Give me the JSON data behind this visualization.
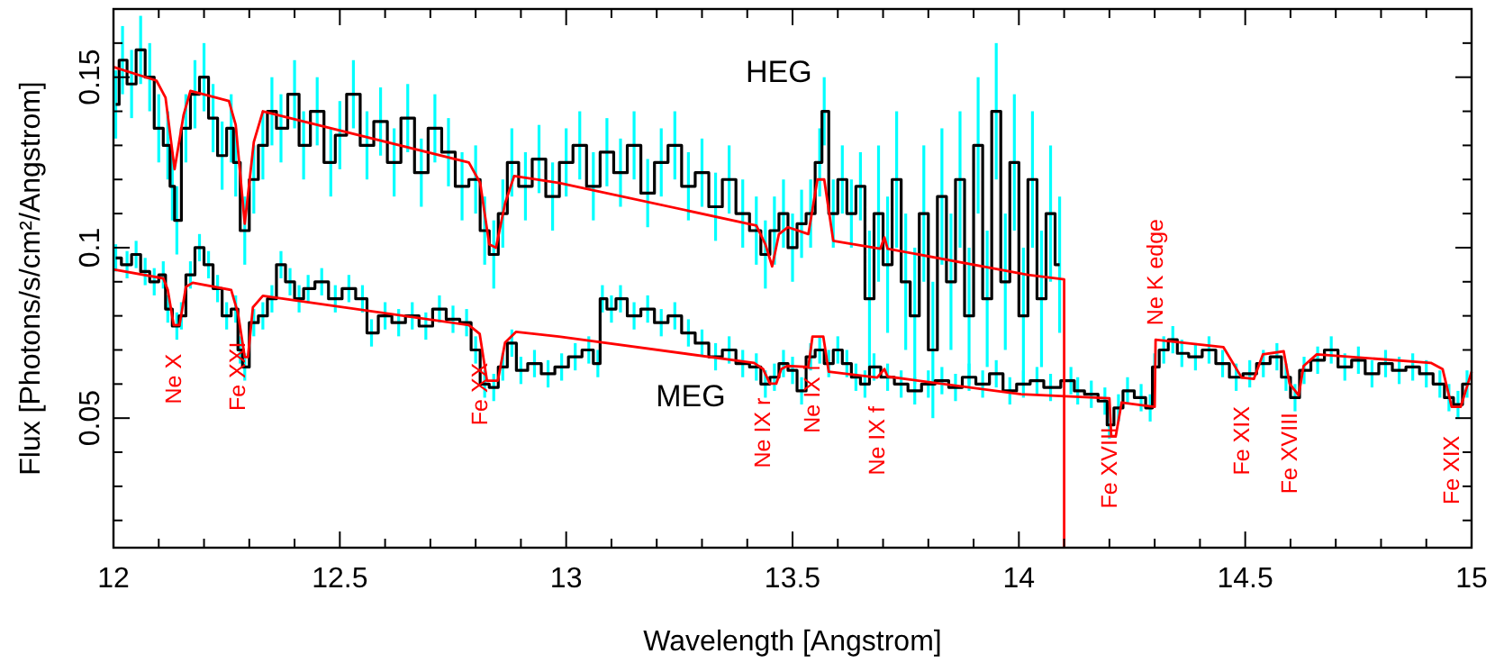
{
  "chart_data": {
    "type": "step",
    "xlabel": "Wavelength [Angstrom]",
    "ylabel": "Flux [Photons/s/cm²/Angstrom]",
    "xlim": [
      12,
      15
    ],
    "ylim": [
      0.012,
      0.17
    ],
    "xticks": [
      12,
      {
        "value": 12.1,
        "label": null
      },
      {
        "value": 12.2,
        "label": null
      },
      {
        "value": 12.3,
        "label": null
      },
      {
        "value": 12.4,
        "label": null
      },
      12.5,
      {
        "value": 12.6,
        "label": null
      },
      {
        "value": 12.7,
        "label": null
      },
      {
        "value": 12.8,
        "label": null
      },
      {
        "value": 12.9,
        "label": null
      },
      13,
      {
        "value": 13.1,
        "label": null
      },
      {
        "value": 13.2,
        "label": null
      },
      {
        "value": 13.3,
        "label": null
      },
      {
        "value": 13.4,
        "label": null
      },
      13.5,
      {
        "value": 13.6,
        "label": null
      },
      {
        "value": 13.7,
        "label": null
      },
      {
        "value": 13.8,
        "label": null
      },
      {
        "value": 13.9,
        "label": null
      },
      14,
      {
        "value": 14.1,
        "label": null
      },
      {
        "value": 14.2,
        "label": null
      },
      {
        "value": 14.3,
        "label": null
      },
      {
        "value": 14.4,
        "label": null
      },
      14.5,
      {
        "value": 14.6,
        "label": null
      },
      {
        "value": 14.7,
        "label": null
      },
      {
        "value": 14.8,
        "label": null
      },
      {
        "value": 14.9,
        "label": null
      },
      15
    ],
    "yticks": [
      {
        "value": 0.02,
        "label": null
      },
      {
        "value": 0.03,
        "label": null
      },
      {
        "value": 0.04,
        "label": null
      },
      0.05,
      {
        "value": 0.06,
        "label": null
      },
      {
        "value": 0.07,
        "label": null
      },
      {
        "value": 0.08,
        "label": null
      },
      {
        "value": 0.09,
        "label": null
      },
      0.1,
      {
        "value": 0.11,
        "label": null
      },
      {
        "value": 0.12,
        "label": null
      },
      {
        "value": 0.13,
        "label": null
      },
      {
        "value": 0.14,
        "label": null
      },
      0.15,
      {
        "value": 0.16,
        "label": null
      }
    ],
    "grid": false,
    "series": [
      {
        "name": "HEG",
        "color": "#000000",
        "x": [
          12.005,
          12.02,
          12.04,
          12.06,
          12.08,
          12.1,
          12.12,
          12.13,
          12.14,
          12.16,
          12.18,
          12.2,
          12.22,
          12.24,
          12.26,
          12.27,
          12.29,
          12.31,
          12.33,
          12.35,
          12.37,
          12.4,
          12.42,
          12.45,
          12.48,
          12.5,
          12.53,
          12.56,
          12.59,
          12.62,
          12.65,
          12.68,
          12.71,
          12.74,
          12.77,
          12.8,
          12.82,
          12.84,
          12.86,
          12.88,
          12.91,
          12.94,
          12.97,
          13.0,
          13.03,
          13.06,
          13.09,
          13.12,
          13.15,
          13.18,
          13.21,
          13.24,
          13.27,
          13.3,
          13.33,
          13.36,
          13.39,
          13.42,
          13.44,
          13.46,
          13.48,
          13.5,
          13.52,
          13.54,
          13.56,
          13.57,
          13.59,
          13.61,
          13.63,
          13.65,
          13.67,
          13.69,
          13.71,
          13.73,
          13.75,
          13.77,
          13.79,
          13.81,
          13.83,
          13.85,
          13.87,
          13.89,
          13.91,
          13.93,
          13.95,
          13.97,
          13.99,
          14.01,
          14.03,
          14.05,
          14.07,
          14.09
        ],
        "values": [
          0.142,
          0.155,
          0.148,
          0.158,
          0.15,
          0.135,
          0.13,
          0.118,
          0.108,
          0.135,
          0.145,
          0.15,
          0.138,
          0.127,
          0.135,
          0.125,
          0.105,
          0.12,
          0.13,
          0.14,
          0.135,
          0.145,
          0.13,
          0.14,
          0.125,
          0.133,
          0.145,
          0.13,
          0.137,
          0.125,
          0.138,
          0.122,
          0.135,
          0.128,
          0.118,
          0.12,
          0.105,
          0.098,
          0.11,
          0.125,
          0.118,
          0.126,
          0.115,
          0.125,
          0.13,
          0.118,
          0.128,
          0.122,
          0.13,
          0.116,
          0.125,
          0.13,
          0.118,
          0.122,
          0.112,
          0.12,
          0.11,
          0.105,
          0.098,
          0.105,
          0.11,
          0.1,
          0.107,
          0.11,
          0.125,
          0.14,
          0.11,
          0.12,
          0.11,
          0.118,
          0.085,
          0.11,
          0.095,
          0.12,
          0.09,
          0.08,
          0.11,
          0.07,
          0.115,
          0.09,
          0.12,
          0.08,
          0.13,
          0.085,
          0.14,
          0.09,
          0.125,
          0.08,
          0.12,
          0.085,
          0.11,
          0.095
        ],
        "errors": [
          0.01,
          0.01,
          0.01,
          0.01,
          0.01,
          0.01,
          0.01,
          0.01,
          0.01,
          0.01,
          0.01,
          0.01,
          0.01,
          0.01,
          0.01,
          0.01,
          0.01,
          0.01,
          0.01,
          0.01,
          0.01,
          0.01,
          0.01,
          0.01,
          0.01,
          0.01,
          0.01,
          0.01,
          0.01,
          0.01,
          0.01,
          0.01,
          0.01,
          0.01,
          0.01,
          0.01,
          0.01,
          0.01,
          0.01,
          0.01,
          0.01,
          0.01,
          0.01,
          0.01,
          0.01,
          0.01,
          0.01,
          0.01,
          0.01,
          0.01,
          0.01,
          0.01,
          0.01,
          0.01,
          0.01,
          0.01,
          0.01,
          0.01,
          0.01,
          0.01,
          0.01,
          0.01,
          0.01,
          0.01,
          0.01,
          0.01,
          0.01,
          0.01,
          0.01,
          0.01,
          0.02,
          0.02,
          0.02,
          0.02,
          0.02,
          0.02,
          0.02,
          0.02,
          0.02,
          0.02,
          0.02,
          0.02,
          0.02,
          0.02,
          0.02,
          0.02,
          0.02,
          0.02,
          0.02,
          0.02,
          0.02,
          0.02
        ]
      },
      {
        "name": "MEG",
        "color": "#000000",
        "x": [
          12.005,
          12.03,
          12.05,
          12.07,
          12.09,
          12.11,
          12.12,
          12.14,
          12.15,
          12.17,
          12.19,
          12.21,
          12.23,
          12.25,
          12.27,
          12.28,
          12.29,
          12.31,
          12.33,
          12.35,
          12.37,
          12.39,
          12.41,
          12.43,
          12.46,
          12.49,
          12.52,
          12.55,
          12.57,
          12.6,
          12.63,
          12.66,
          12.69,
          12.72,
          12.75,
          12.78,
          12.8,
          12.82,
          12.84,
          12.86,
          12.88,
          12.9,
          12.93,
          12.96,
          12.99,
          13.02,
          13.05,
          13.07,
          13.08,
          13.1,
          13.12,
          13.15,
          13.18,
          13.21,
          13.24,
          13.27,
          13.3,
          13.33,
          13.36,
          13.39,
          13.42,
          13.44,
          13.46,
          13.48,
          13.5,
          13.52,
          13.54,
          13.56,
          13.58,
          13.6,
          13.62,
          13.64,
          13.66,
          13.68,
          13.71,
          13.74,
          13.77,
          13.8,
          13.83,
          13.86,
          13.89,
          13.92,
          13.95,
          13.98,
          14.01,
          14.04,
          14.07,
          14.115,
          14.13,
          14.16,
          14.19,
          14.2,
          14.22,
          14.24,
          14.27,
          14.29,
          14.3,
          14.32,
          14.34,
          14.36,
          14.39,
          14.42,
          14.45,
          14.48,
          14.51,
          14.54,
          14.57,
          14.59,
          14.61,
          14.63,
          14.66,
          14.69,
          14.72,
          14.75,
          14.78,
          14.81,
          14.84,
          14.87,
          14.9,
          14.93,
          14.95,
          14.97,
          14.99
        ],
        "values": [
          0.097,
          0.095,
          0.098,
          0.093,
          0.09,
          0.092,
          0.082,
          0.077,
          0.08,
          0.092,
          0.1,
          0.095,
          0.088,
          0.08,
          0.082,
          0.07,
          0.065,
          0.078,
          0.08,
          0.085,
          0.095,
          0.09,
          0.085,
          0.088,
          0.09,
          0.085,
          0.088,
          0.085,
          0.075,
          0.08,
          0.078,
          0.08,
          0.077,
          0.082,
          0.079,
          0.078,
          0.07,
          0.06,
          0.059,
          0.065,
          0.072,
          0.064,
          0.066,
          0.063,
          0.065,
          0.068,
          0.07,
          0.066,
          0.085,
          0.082,
          0.085,
          0.08,
          0.082,
          0.078,
          0.08,
          0.075,
          0.072,
          0.068,
          0.07,
          0.066,
          0.065,
          0.06,
          0.062,
          0.066,
          0.064,
          0.058,
          0.068,
          0.07,
          0.066,
          0.07,
          0.066,
          0.062,
          0.06,
          0.065,
          0.062,
          0.06,
          0.058,
          0.06,
          0.061,
          0.059,
          0.062,
          0.06,
          0.063,
          0.058,
          0.06,
          0.061,
          0.059,
          0.061,
          0.058,
          0.057,
          0.055,
          0.048,
          0.053,
          0.058,
          0.056,
          0.053,
          0.065,
          0.07,
          0.073,
          0.069,
          0.068,
          0.07,
          0.066,
          0.062,
          0.063,
          0.066,
          0.068,
          0.062,
          0.056,
          0.064,
          0.067,
          0.07,
          0.065,
          0.067,
          0.063,
          0.066,
          0.064,
          0.065,
          0.063,
          0.06,
          0.056,
          0.054,
          0.06
        ],
        "errors": [
          0.004,
          0.004,
          0.004,
          0.004,
          0.004,
          0.004,
          0.004,
          0.004,
          0.004,
          0.004,
          0.004,
          0.004,
          0.004,
          0.004,
          0.004,
          0.004,
          0.004,
          0.004,
          0.004,
          0.004,
          0.004,
          0.004,
          0.004,
          0.004,
          0.004,
          0.004,
          0.004,
          0.004,
          0.004,
          0.004,
          0.004,
          0.004,
          0.004,
          0.004,
          0.004,
          0.004,
          0.004,
          0.004,
          0.004,
          0.004,
          0.004,
          0.004,
          0.004,
          0.004,
          0.004,
          0.004,
          0.004,
          0.004,
          0.004,
          0.004,
          0.004,
          0.004,
          0.004,
          0.004,
          0.004,
          0.004,
          0.004,
          0.004,
          0.004,
          0.004,
          0.004,
          0.004,
          0.004,
          0.004,
          0.004,
          0.004,
          0.004,
          0.004,
          0.004,
          0.004,
          0.004,
          0.004,
          0.004,
          0.004,
          0.004,
          0.004,
          0.004,
          0.004,
          0.004,
          0.004,
          0.004,
          0.004,
          0.004,
          0.004,
          0.004,
          0.004,
          0.004,
          0.004,
          0.004,
          0.004,
          0.004,
          0.004,
          0.004,
          0.004,
          0.004,
          0.004,
          0.004,
          0.004,
          0.004,
          0.004,
          0.004,
          0.004,
          0.004,
          0.004,
          0.004,
          0.004,
          0.004,
          0.004,
          0.004,
          0.004,
          0.004,
          0.004,
          0.004,
          0.004,
          0.004,
          0.004,
          0.004,
          0.004,
          0.004,
          0.004,
          0.004,
          0.004,
          0.004
        ]
      },
      {
        "type": "line",
        "color": "#ff0000",
        "x": [
          12,
          12.095,
          12.115,
          12.135,
          12.155,
          12.17,
          12.255,
          12.27,
          12.29,
          12.31,
          12.33,
          12.785,
          12.81,
          12.83,
          12.845,
          12.865,
          12.885,
          12.985,
          13.42,
          13.44,
          13.455,
          13.47,
          13.49,
          13.535,
          13.555,
          13.57,
          13.59,
          13.694,
          13.703,
          13.71,
          14.02,
          14.1,
          14.1
        ],
        "values": [
          0.153,
          0.149,
          0.144,
          0.123,
          0.139,
          0.146,
          0.143,
          0.136,
          0.107,
          0.131,
          0.14,
          0.125,
          0.119,
          0.101,
          0.1,
          0.113,
          0.121,
          0.119,
          0.1065,
          0.101,
          0.0945,
          0.104,
          0.106,
          0.104,
          0.12,
          0.12,
          0.102,
          0.0997,
          0.103,
          0.0997,
          0.092,
          0.0907,
          0.012
        ]
      },
      {
        "type": "line",
        "color": "#ff0000",
        "x": [
          12,
          12.11,
          12.12,
          12.133,
          12.146,
          12.16,
          12.175,
          12.26,
          12.275,
          12.29,
          12.297,
          12.308,
          12.33,
          12.785,
          12.809,
          12.825,
          12.849,
          12.865,
          12.889,
          12.984,
          13.415,
          13.435,
          13.45,
          13.464,
          13.475,
          13.488,
          13.535,
          13.544,
          13.568,
          13.58,
          13.687,
          13.703,
          13.71,
          14.005,
          14.2,
          14.204,
          14.214,
          14.227,
          14.3,
          14.302,
          14.452,
          14.492,
          14.519,
          14.539,
          14.585,
          14.598,
          14.618,
          14.629,
          14.658,
          14.91,
          14.936,
          14.956,
          14.976,
          15
        ],
        "values": [
          0.0936,
          0.091,
          0.0876,
          0.0773,
          0.0773,
          0.0885,
          0.0897,
          0.0876,
          0.0808,
          0.0679,
          0.0679,
          0.0825,
          0.0859,
          0.0773,
          0.0747,
          0.061,
          0.061,
          0.0722,
          0.0753,
          0.0739,
          0.0662,
          0.0644,
          0.0601,
          0.0601,
          0.0644,
          0.0653,
          0.065,
          0.0739,
          0.0739,
          0.0636,
          0.0619,
          0.0644,
          0.0622,
          0.057,
          0.0558,
          0.0447,
          0.0447,
          0.0546,
          0.0533,
          0.073,
          0.0708,
          0.0619,
          0.0615,
          0.0687,
          0.0696,
          0.0601,
          0.0567,
          0.0653,
          0.0687,
          0.0662,
          0.0644,
          0.0533,
          0.0533,
          0.0636
        ]
      }
    ],
    "annotations": [
      {
        "text": "Ne X",
        "x": 12.133,
        "y": 0.0773
      },
      {
        "text": "Fe XXI",
        "x": 12.275,
        "y": 0.0808
      },
      {
        "text": "Fe XX",
        "x": 12.809,
        "y": 0.0747
      },
      {
        "text": "Ne IX r",
        "x": 13.435,
        "y": 0.0644
      },
      {
        "text": "Ne IX i",
        "x": 13.544,
        "y": 0.0739
      },
      {
        "text": "Ne IX f",
        "x": 13.687,
        "y": 0.0619
      },
      {
        "text": "Fe XVIII",
        "x": 14.2,
        "y": 0.0558
      },
      {
        "text": "Ne K edge",
        "x": 14.302,
        "y": 0.073
      },
      {
        "text": "Fe XIX",
        "x": 14.492,
        "y": 0.0619
      },
      {
        "text": "Fe XVIII",
        "x": 14.598,
        "y": 0.0601
      },
      {
        "text": "Fe XIX",
        "x": 14.956,
        "y": 0.0533
      }
    ]
  }
}
